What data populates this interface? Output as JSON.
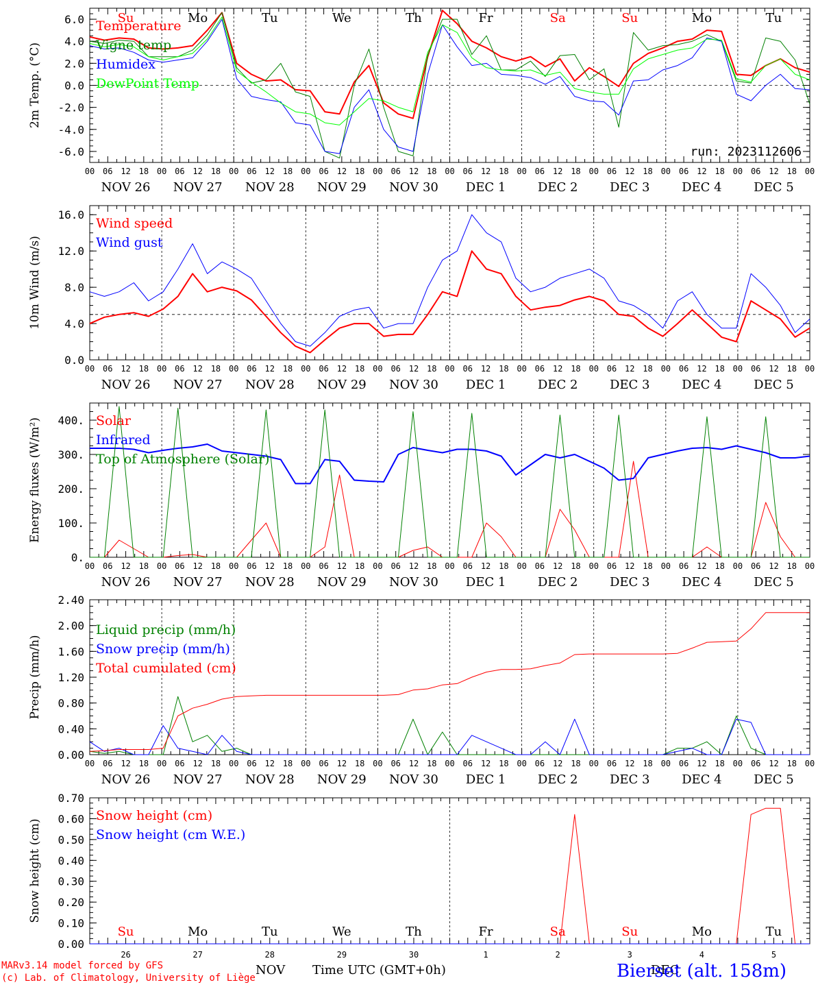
{
  "chart_data": [
    {
      "id": "temperature",
      "type": "line",
      "ylabel": "2m Temp. (°C)",
      "ylim": [
        -7.0,
        7.0
      ],
      "yticks": [
        "-6.0",
        "-4.0",
        "-2.0",
        "0.0",
        "2.0",
        "4.0",
        "6.0"
      ],
      "ytick_values": [
        -6,
        -4,
        -2,
        0,
        2,
        4,
        6
      ],
      "ref_line": 0.0,
      "annotation": "run: 2023112606",
      "day_labels": [
        {
          "text": "Su",
          "color": "#ff0000"
        },
        {
          "text": "Mo",
          "color": "#000000"
        },
        {
          "text": "Tu",
          "color": "#000000"
        },
        {
          "text": "We",
          "color": "#000000"
        },
        {
          "text": "Th",
          "color": "#000000"
        },
        {
          "text": "Fr",
          "color": "#000000"
        },
        {
          "text": "Sa",
          "color": "#ff0000"
        },
        {
          "text": "Su",
          "color": "#ff0000"
        },
        {
          "text": "Mo",
          "color": "#000000"
        },
        {
          "text": "Tu",
          "color": "#000000"
        }
      ],
      "series": [
        {
          "name": "Temperature",
          "color": "#ff0000",
          "width": 2,
          "values": [
            4.4,
            4.1,
            4.3,
            4.2,
            3.4,
            3.3,
            3.4,
            3.6,
            5.0,
            6.6,
            2.0,
            1.0,
            0.4,
            0.5,
            -0.4,
            -0.5,
            -2.4,
            -2.6,
            0.3,
            1.8,
            -1.6,
            -2.6,
            -3.0,
            2.6,
            6.8,
            5.6,
            4.0,
            3.4,
            2.6,
            2.2,
            2.6,
            1.7,
            2.4,
            0.4,
            1.6,
            0.8,
            -0.1,
            2.0,
            2.9,
            3.4,
            4.0,
            4.2,
            5.0,
            4.9,
            1.0,
            0.9,
            1.8,
            2.4,
            1.6,
            1.2
          ]
        },
        {
          "name": "Vigne temp",
          "color": "#008000",
          "width": 1,
          "values": [
            4.0,
            3.8,
            4.1,
            4.0,
            2.6,
            2.6,
            2.6,
            3.2,
            4.6,
            6.6,
            1.6,
            0.2,
            0.5,
            2.0,
            -0.6,
            -1.0,
            -6.0,
            -6.6,
            0.0,
            3.3,
            -2.0,
            -6.0,
            -6.4,
            2.7,
            6.0,
            6.0,
            2.8,
            4.5,
            1.4,
            1.4,
            2.2,
            0.8,
            2.7,
            2.8,
            0.5,
            1.5,
            -3.8,
            4.8,
            3.2,
            3.6,
            3.7,
            4.0,
            4.6,
            4.0,
            0.4,
            0.2,
            4.3,
            4.0,
            2.3,
            -1.7
          ]
        },
        {
          "name": "Humidex",
          "color": "#0000ff",
          "width": 1,
          "values": [
            3.6,
            3.3,
            3.4,
            3.0,
            2.3,
            2.1,
            2.3,
            2.5,
            4.0,
            6.0,
            0.6,
            -1.0,
            -1.3,
            -1.5,
            -3.4,
            -3.6,
            -6.0,
            -6.2,
            -2.0,
            -0.4,
            -4.0,
            -5.6,
            -6.0,
            1.0,
            5.5,
            3.5,
            1.8,
            2.0,
            1.0,
            0.9,
            0.7,
            0.1,
            0.8,
            -1.0,
            -1.4,
            -1.5,
            -2.7,
            0.4,
            0.5,
            1.4,
            1.8,
            2.5,
            4.3,
            4.0,
            -0.8,
            -1.4,
            0.0,
            1.0,
            -0.3,
            -0.4
          ]
        },
        {
          "name": "DewPoint Temp",
          "color": "#00ff00",
          "width": 1,
          "values": [
            3.8,
            3.5,
            3.7,
            3.5,
            2.6,
            2.3,
            2.6,
            2.9,
            4.2,
            6.2,
            1.3,
            0.3,
            -0.6,
            -1.6,
            -2.4,
            -2.6,
            -3.4,
            -3.6,
            -2.4,
            -1.2,
            -1.4,
            -2.0,
            -2.4,
            3.0,
            5.5,
            4.8,
            2.5,
            1.6,
            1.4,
            1.3,
            1.4,
            0.9,
            1.2,
            -0.3,
            -0.6,
            -0.8,
            -0.8,
            1.5,
            2.4,
            2.8,
            3.2,
            3.4,
            4.2,
            4.1,
            0.6,
            0.3,
            1.8,
            2.4,
            1.0,
            0.5
          ]
        }
      ]
    },
    {
      "id": "wind",
      "type": "line",
      "ylabel": "10m Wind (m/s)",
      "ylim": [
        0,
        17
      ],
      "yticks": [
        "0.0",
        "4.0",
        "8.0",
        "12.0",
        "16.0"
      ],
      "ytick_values": [
        0,
        4,
        8,
        12,
        16
      ],
      "ref_line": 5.0,
      "series": [
        {
          "name": "Wind speed",
          "color": "#ff0000",
          "width": 2,
          "values": [
            4.0,
            4.7,
            5.0,
            5.2,
            4.8,
            5.6,
            7.0,
            9.5,
            7.5,
            8.0,
            7.6,
            6.6,
            4.8,
            3.0,
            1.5,
            0.8,
            2.2,
            3.5,
            4.0,
            4.0,
            2.6,
            2.8,
            2.8,
            5.0,
            7.5,
            7.0,
            12.0,
            10.0,
            9.5,
            7.0,
            5.5,
            5.8,
            6.0,
            6.6,
            7.0,
            6.5,
            5.0,
            4.8,
            3.5,
            2.6,
            4.0,
            5.5,
            4.0,
            2.5,
            2.0,
            6.5,
            5.5,
            4.5,
            2.5,
            3.5
          ]
        },
        {
          "name": "Wind gust",
          "color": "#0000ff",
          "width": 1,
          "values": [
            7.5,
            7.0,
            7.5,
            8.5,
            6.5,
            7.5,
            10.0,
            12.8,
            9.5,
            10.8,
            10.0,
            9.0,
            6.5,
            4.0,
            2.0,
            1.5,
            3.0,
            4.8,
            5.5,
            5.8,
            3.5,
            4.0,
            4.0,
            8.0,
            11.0,
            12.0,
            16.0,
            14.0,
            13.0,
            9.0,
            7.5,
            8.0,
            9.0,
            9.5,
            10.0,
            9.0,
            6.5,
            6.0,
            5.0,
            3.5,
            6.5,
            7.5,
            5.0,
            3.5,
            3.5,
            9.5,
            8.0,
            6.0,
            3.0,
            4.5
          ]
        }
      ]
    },
    {
      "id": "energy",
      "type": "line",
      "ylabel": "Energy fluxes (W/m²)",
      "ylim": [
        0,
        450
      ],
      "yticks": [
        "0.",
        "100.",
        "200.",
        "300.",
        "400."
      ],
      "ytick_values": [
        0,
        100,
        200,
        300,
        400
      ],
      "series": [
        {
          "name": "Solar",
          "color": "#ff0000",
          "width": 1,
          "values": [
            0,
            0,
            50,
            25,
            0,
            0,
            5,
            8,
            0,
            0,
            0,
            50,
            100,
            0,
            0,
            0,
            30,
            240,
            0,
            0,
            0,
            0,
            20,
            30,
            0,
            0,
            0,
            100,
            60,
            0,
            0,
            0,
            140,
            80,
            0,
            0,
            0,
            280,
            0,
            0,
            0,
            0,
            30,
            0,
            0,
            0,
            160,
            60,
            0,
            0
          ]
        },
        {
          "name": "Infrared",
          "color": "#0000ff",
          "width": 2,
          "values": [
            318,
            318,
            318,
            315,
            305,
            312,
            318,
            322,
            330,
            310,
            305,
            300,
            295,
            285,
            215,
            215,
            285,
            280,
            225,
            222,
            220,
            300,
            320,
            312,
            305,
            315,
            315,
            310,
            295,
            240,
            270,
            300,
            290,
            300,
            280,
            260,
            225,
            230,
            290,
            300,
            310,
            318,
            320,
            315,
            325,
            315,
            305,
            290,
            290,
            295
          ]
        },
        {
          "name": "Top of Atmosphere (Solar)",
          "color": "#008000",
          "width": 1,
          "values": [
            0,
            0,
            440,
            0,
            0,
            0,
            435,
            0,
            0,
            0,
            0,
            0,
            430,
            0,
            0,
            0,
            430,
            0,
            0,
            0,
            0,
            0,
            425,
            0,
            0,
            0,
            420,
            0,
            0,
            0,
            0,
            0,
            415,
            0,
            0,
            0,
            415,
            0,
            0,
            0,
            0,
            0,
            410,
            0,
            0,
            0,
            410,
            0,
            0,
            0
          ]
        }
      ]
    },
    {
      "id": "precip",
      "type": "line",
      "ylabel": "Precip (mm/h)",
      "ylim": [
        0,
        2.4
      ],
      "yticks": [
        "0.00",
        "0.40",
        "0.80",
        "1.20",
        "1.60",
        "2.00",
        "2.40"
      ],
      "ytick_values": [
        0,
        0.4,
        0.8,
        1.2,
        1.6,
        2.0,
        2.4
      ],
      "series": [
        {
          "name": "Liquid precip (mm/h)",
          "color": "#008000",
          "width": 1,
          "values": [
            0.05,
            0.02,
            0.05,
            0.0,
            0.0,
            0.0,
            0.9,
            0.2,
            0.3,
            0.05,
            0.1,
            0.0,
            0.0,
            0.0,
            0.0,
            0.0,
            0.0,
            0.0,
            0.0,
            0.0,
            0.0,
            0.0,
            0.55,
            0.0,
            0.35,
            0.0,
            0.0,
            0.0,
            0.0,
            0.0,
            0.0,
            0.0,
            0.0,
            0.0,
            0.0,
            0.0,
            0.0,
            0.0,
            0.0,
            0.0,
            0.1,
            0.1,
            0.2,
            0.0,
            0.6,
            0.1,
            0.0,
            0.0,
            0.0,
            0.0
          ]
        },
        {
          "name": "Snow precip (mm/h)",
          "color": "#0000ff",
          "width": 1,
          "values": [
            0.2,
            0.05,
            0.1,
            0.0,
            0.0,
            0.45,
            0.1,
            0.05,
            0.0,
            0.3,
            0.05,
            0.0,
            0.0,
            0.0,
            0.0,
            0.0,
            0.0,
            0.0,
            0.0,
            0.0,
            0.0,
            0.0,
            0.0,
            0.0,
            0.0,
            0.0,
            0.3,
            0.2,
            0.1,
            0.0,
            0.0,
            0.2,
            0.0,
            0.55,
            0.0,
            0.0,
            0.0,
            0.0,
            0.0,
            0.0,
            0.05,
            0.1,
            0.0,
            0.0,
            0.55,
            0.5,
            0.0,
            0.0,
            0.0,
            0.0
          ]
        },
        {
          "name": "Total cumulated (cm)",
          "color": "#ff0000",
          "width": 1,
          "values": [
            0.05,
            0.06,
            0.08,
            0.08,
            0.08,
            0.1,
            0.6,
            0.72,
            0.78,
            0.86,
            0.9,
            0.91,
            0.92,
            0.92,
            0.92,
            0.92,
            0.92,
            0.92,
            0.92,
            0.92,
            0.92,
            0.93,
            1.0,
            1.02,
            1.08,
            1.1,
            1.2,
            1.28,
            1.32,
            1.32,
            1.33,
            1.38,
            1.42,
            1.55,
            1.56,
            1.56,
            1.56,
            1.56,
            1.56,
            1.56,
            1.57,
            1.65,
            1.74,
            1.75,
            1.76,
            1.95,
            2.2,
            2.2,
            2.2,
            2.2
          ]
        }
      ]
    },
    {
      "id": "snow",
      "type": "line",
      "ylabel": "Snow height (cm)",
      "ylim": [
        0,
        0.7
      ],
      "yticks": [
        "0.00",
        "0.10",
        "0.20",
        "0.30",
        "0.40",
        "0.50",
        "0.60",
        "0.70"
      ],
      "ytick_values": [
        0,
        0.1,
        0.2,
        0.3,
        0.4,
        0.5,
        0.6,
        0.7
      ],
      "series": [
        {
          "name": "Snow height (cm)",
          "color": "#ff0000",
          "width": 1,
          "values": [
            0,
            0,
            0,
            0,
            0,
            0,
            0,
            0,
            0,
            0,
            0,
            0,
            0,
            0,
            0,
            0,
            0,
            0,
            0,
            0,
            0,
            0,
            0,
            0,
            0,
            0,
            0,
            0,
            0,
            0,
            0,
            0,
            0,
            0.62,
            0,
            0,
            0,
            0,
            0,
            0,
            0,
            0,
            0,
            0,
            0,
            0.62,
            0.65,
            0.65,
            0,
            0
          ]
        },
        {
          "name": "Snow height (cm W.E.)",
          "color": "#0000ff",
          "width": 1,
          "values": [
            0,
            0,
            0,
            0,
            0,
            0,
            0,
            0,
            0,
            0,
            0,
            0,
            0,
            0,
            0,
            0,
            0,
            0,
            0,
            0,
            0,
            0,
            0,
            0,
            0,
            0,
            0,
            0,
            0,
            0,
            0,
            0,
            0,
            0,
            0,
            0,
            0,
            0,
            0,
            0,
            0,
            0,
            0,
            0,
            0,
            0,
            0,
            0,
            0,
            0
          ]
        }
      ],
      "bottom_day_labels": [
        {
          "text": "Su",
          "color": "#ff0000"
        },
        {
          "text": "Mo",
          "color": "#000000"
        },
        {
          "text": "Tu",
          "color": "#000000"
        },
        {
          "text": "We",
          "color": "#000000"
        },
        {
          "text": "Th",
          "color": "#000000"
        },
        {
          "text": "Fr",
          "color": "#000000"
        },
        {
          "text": "Sa",
          "color": "#ff0000"
        },
        {
          "text": "Su",
          "color": "#ff0000"
        },
        {
          "text": "Mo",
          "color": "#000000"
        },
        {
          "text": "Tu",
          "color": "#000000"
        }
      ],
      "bottom_day_numbers": [
        "26",
        "27",
        "28",
        "29",
        "30",
        "1",
        "2",
        "3",
        "4",
        "5"
      ]
    }
  ],
  "x_axis": {
    "hour_labels": [
      "00",
      "06",
      "12",
      "18"
    ],
    "final_hour": "00",
    "date_labels": [
      "NOV 26",
      "NOV 27",
      "NOV 28",
      "NOV 29",
      "NOV 30",
      "DEC  1",
      "DEC  2",
      "DEC  3",
      "DEC  4",
      "DEC  5"
    ]
  },
  "footer": {
    "model_line": "MARv3.14 model forced by GFS",
    "credit_line": "(c) Lab. of Climatology, University of Liège",
    "month_left": "NOV",
    "month_right": "DEC",
    "time_label": "Time UTC (GMT+0h)",
    "station": "Bierset (alt. 158m)",
    "model_color": "#ff0000",
    "station_color": "#0000ff"
  }
}
